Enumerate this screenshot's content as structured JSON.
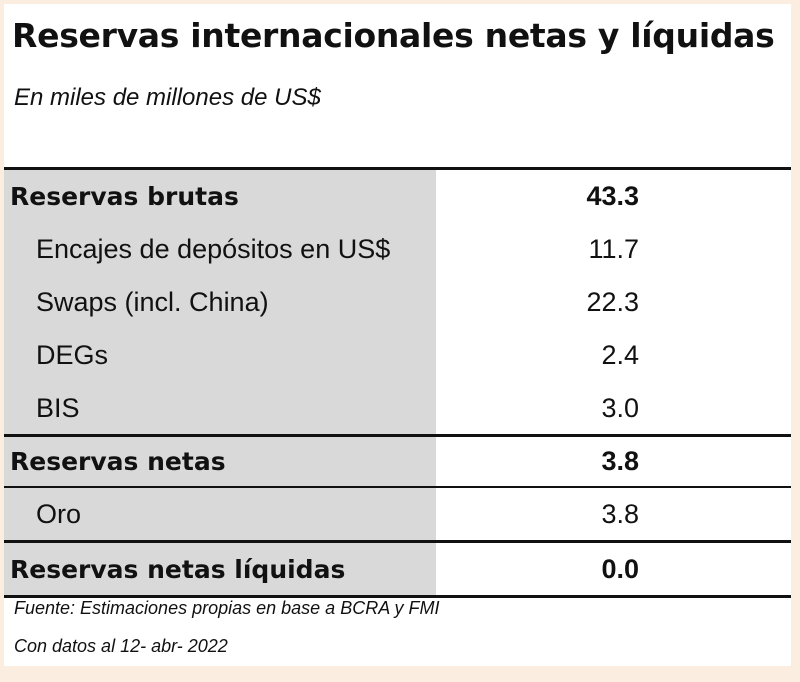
{
  "title": "Reservas internacionales netas y líquidas",
  "subtitle": "En miles de millones de US$",
  "rows": [
    {
      "label": "Reservas brutas",
      "value": "43.3"
    },
    {
      "label": "Encajes de depósitos en US$",
      "value": "11.7"
    },
    {
      "label": "Swaps (incl. China)",
      "value": "22.3"
    },
    {
      "label": "DEGs",
      "value": "2.4"
    },
    {
      "label": "BIS",
      "value": "3.0"
    },
    {
      "label": "Reservas netas",
      "value": "3.8"
    },
    {
      "label": "Oro",
      "value": "3.8"
    },
    {
      "label": "Reservas netas líquidas",
      "value": "0.0"
    }
  ],
  "footnotes": {
    "source": "Fuente: Estimaciones propias en base a BCRA y FMI",
    "date": "Con datos al 12- abr- 2022"
  }
}
